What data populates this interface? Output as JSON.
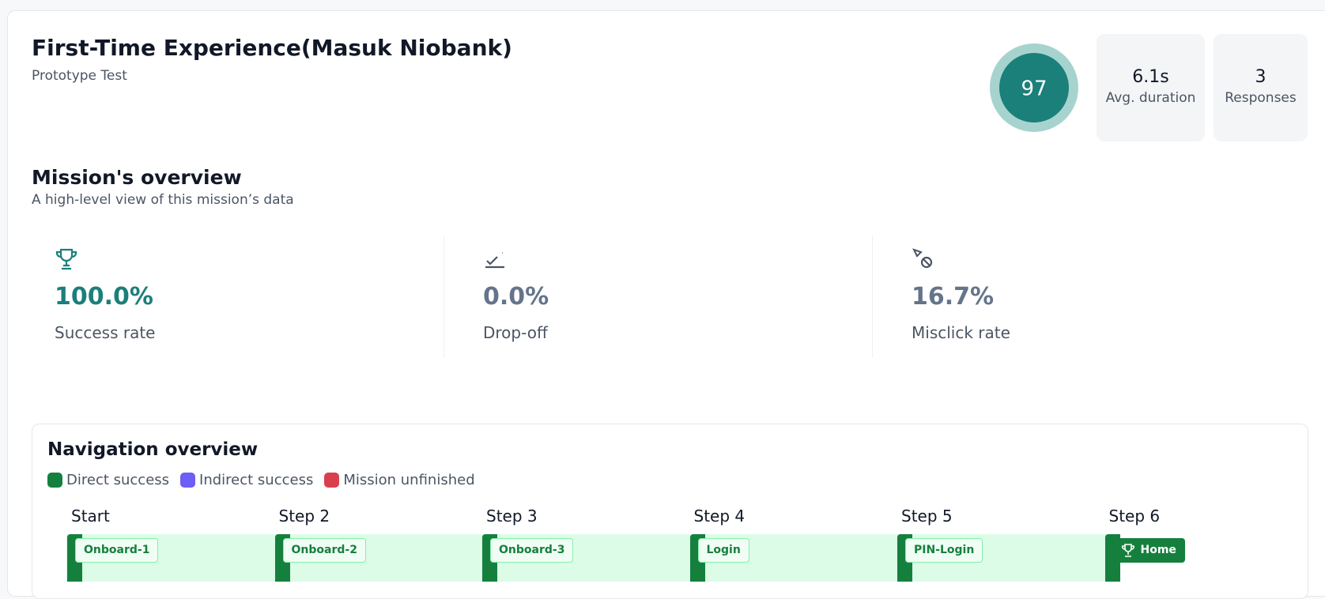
{
  "header": {
    "title": "First-Time Experience(Masuk Niobank)",
    "subtitle": "Prototype Test",
    "score": 97,
    "stats": [
      {
        "value": "6.1s",
        "label": "Avg. duration"
      },
      {
        "value": "3",
        "label": "Responses"
      }
    ]
  },
  "overview": {
    "title": "Mission's overview",
    "subtitle": "A high-level view of this mission’s data",
    "metrics": [
      {
        "value": "100.0%",
        "label": "Success rate"
      },
      {
        "value": "0.0%",
        "label": "Drop-off"
      },
      {
        "value": "16.7%",
        "label": "Misclick rate"
      }
    ]
  },
  "navigation": {
    "title": "Navigation overview",
    "legend": [
      {
        "label": "Direct success",
        "color": "#15803d"
      },
      {
        "label": "Indirect success",
        "color": "#6d5ef5"
      },
      {
        "label": "Mission unfinished",
        "color": "#d9404e"
      }
    ],
    "steps": [
      {
        "label": "Start",
        "screen": "Onboard-1"
      },
      {
        "label": "Step 2",
        "screen": "Onboard-2"
      },
      {
        "label": "Step 3",
        "screen": "Onboard-3"
      },
      {
        "label": "Step 4",
        "screen": "Login"
      },
      {
        "label": "Step 5",
        "screen": "PIN-Login"
      },
      {
        "label": "Step 6",
        "screen": "Home"
      }
    ]
  }
}
